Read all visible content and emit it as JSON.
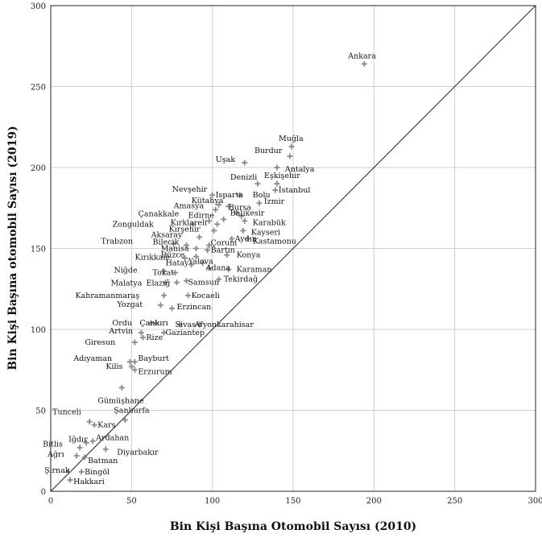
{
  "chart_data": {
    "type": "scatter",
    "title": "",
    "xlabel": "Bin Kişi Başına Otomobil Sayısı (2010)",
    "ylabel": "Bin Kişi Başına otomobil Sayısı (2019)",
    "xlim": [
      0,
      300
    ],
    "ylim": [
      0,
      300
    ],
    "xticks": [
      0,
      50,
      100,
      150,
      200,
      250,
      300
    ],
    "yticks": [
      0,
      50,
      100,
      150,
      200,
      250,
      300
    ],
    "grid": true,
    "reference_line": "y = x",
    "marker": "plus",
    "marker_color": "#8a8a8a",
    "points": [
      {
        "label": "Ankara",
        "x": 194,
        "y": 264,
        "ldx": -20,
        "ldy": -10
      },
      {
        "label": "Muğla",
        "x": 149,
        "y": 213,
        "ldx": -16,
        "ldy": -10
      },
      {
        "label": "Burdur",
        "x": 148,
        "y": 207,
        "ldx": -44,
        "ldy": -7
      },
      {
        "label": "Antalya",
        "x": 140,
        "y": 200,
        "ldx": 10,
        "ldy": 2
      },
      {
        "label": "Uşak",
        "x": 120,
        "y": 203,
        "ldx": -36,
        "ldy": -4
      },
      {
        "label": "Denizli",
        "x": 128,
        "y": 190,
        "ldx": -34,
        "ldy": -8
      },
      {
        "label": "Eşkişehir",
        "x": 140,
        "y": 190,
        "ldx": -16,
        "ldy": -10
      },
      {
        "label": "İstanbul",
        "x": 139,
        "y": 186,
        "ldx": 4,
        "ldy": 0
      },
      {
        "label": "Bolu",
        "x": 117,
        "y": 183,
        "ldx": 16,
        "ldy": 0
      },
      {
        "label": "Nevşehir",
        "x": 100,
        "y": 183,
        "ldx": -50,
        "ldy": -7
      },
      {
        "label": "Isparta",
        "x": 104,
        "y": 177,
        "ldx": -4,
        "ldy": -12
      },
      {
        "label": "Kütahya",
        "x": 110,
        "y": 176,
        "ldx": -46,
        "ldy": -7
      },
      {
        "label": "Amasya",
        "x": 102,
        "y": 174,
        "ldx": -52,
        "ldy": -5
      },
      {
        "label": "İzmir",
        "x": 129,
        "y": 178,
        "ldx": 6,
        "ldy": -2
      },
      {
        "label": "Bursa",
        "x": 115,
        "y": 172,
        "ldx": -10,
        "ldy": -7
      },
      {
        "label": "Balıkesir",
        "x": 118,
        "y": 170,
        "ldx": -14,
        "ldy": -4
      },
      {
        "label": "Çanakkale",
        "x": 98,
        "y": 167,
        "ldx": -88,
        "ldy": -9
      },
      {
        "label": "Edirne",
        "x": 107,
        "y": 168,
        "ldx": -44,
        "ldy": -5
      },
      {
        "label": "Karabük",
        "x": 120,
        "y": 167,
        "ldx": 10,
        "ldy": 2
      },
      {
        "label": "Zonguldak",
        "x": 88,
        "y": 165,
        "ldx": -100,
        "ldy": 0
      },
      {
        "label": "Kırklareli",
        "x": 103,
        "y": 165,
        "ldx": -58,
        "ldy": -2
      },
      {
        "label": "Kırşehir",
        "x": 101,
        "y": 161,
        "ldx": -56,
        "ldy": -2
      },
      {
        "label": "Kayseri",
        "x": 119,
        "y": 161,
        "ldx": 10,
        "ldy": 2
      },
      {
        "label": "Aksaray",
        "x": 92,
        "y": 157,
        "ldx": -60,
        "ldy": -3
      },
      {
        "label": "Aydın",
        "x": 112,
        "y": 156,
        "ldx": 4,
        "ldy": 0
      },
      {
        "label": "Kastamonu",
        "x": 122,
        "y": 156,
        "ldx": 6,
        "ldy": 3
      },
      {
        "label": "Bilecik",
        "x": 84,
        "y": 152,
        "ldx": -42,
        "ldy": -4
      },
      {
        "label": "Çorum",
        "x": 98,
        "y": 152,
        "ldx": 2,
        "ldy": -3
      },
      {
        "label": "Bartın",
        "x": 97,
        "y": 149,
        "ldx": 4,
        "ldy": 0
      },
      {
        "label": "Trabzon",
        "x": 76,
        "y": 153,
        "ldx": -90,
        "ldy": -3
      },
      {
        "label": "Manisa",
        "x": 90,
        "y": 150,
        "ldx": -44,
        "ldy": 0
      },
      {
        "label": "Konya",
        "x": 109,
        "y": 146,
        "ldx": 12,
        "ldy": 0
      },
      {
        "label": "Kırıkkale",
        "x": 83,
        "y": 144,
        "ldx": -62,
        "ldy": -1
      },
      {
        "label": "Düzce",
        "x": 90,
        "y": 145,
        "ldx": -44,
        "ldy": -2
      },
      {
        "label": "Hatay",
        "x": 87,
        "y": 140,
        "ldx": -32,
        "ldy": -2
      },
      {
        "label": "Yalova",
        "x": 94,
        "y": 141,
        "ldx": -18,
        "ldy": -2
      },
      {
        "label": "Adana",
        "x": 98,
        "y": 138,
        "ldx": -4,
        "ldy": 0
      },
      {
        "label": "Karaman",
        "x": 110,
        "y": 137,
        "ldx": 10,
        "ldy": 0
      },
      {
        "label": "Niğde",
        "x": 70,
        "y": 136,
        "ldx": -62,
        "ldy": -1
      },
      {
        "label": "Tokat",
        "x": 77,
        "y": 135,
        "ldx": -28,
        "ldy": 0
      },
      {
        "label": "Samsun",
        "x": 84,
        "y": 130,
        "ldx": 2,
        "ldy": 2
      },
      {
        "label": "Tekirdağ",
        "x": 104,
        "y": 131,
        "ldx": 6,
        "ldy": 0
      },
      {
        "label": "Malatya",
        "x": 71,
        "y": 129,
        "ldx": -68,
        "ldy": 1
      },
      {
        "label": "Elazığ",
        "x": 78,
        "y": 129,
        "ldx": -38,
        "ldy": 1
      },
      {
        "label": "Kahramanmaraş",
        "x": 70,
        "y": 121,
        "ldx": -110,
        "ldy": 0
      },
      {
        "label": "Kocaeli",
        "x": 85,
        "y": 121,
        "ldx": 4,
        "ldy": 0
      },
      {
        "label": "Yozgat",
        "x": 68,
        "y": 115,
        "ldx": -54,
        "ldy": -1
      },
      {
        "label": "Erzincan",
        "x": 75,
        "y": 113,
        "ldx": 6,
        "ldy": -2
      },
      {
        "label": "Ordu",
        "x": 62,
        "y": 104,
        "ldx": -48,
        "ldy": 0
      },
      {
        "label": "Çankırı",
        "x": 65,
        "y": 104,
        "ldx": -20,
        "ldy": 0
      },
      {
        "label": "Sivas",
        "x": 80,
        "y": 103,
        "ldx": -6,
        "ldy": 0
      },
      {
        "label": "Afyonkarahisar",
        "x": 92,
        "y": 103,
        "ldx": -6,
        "ldy": 0
      },
      {
        "label": "Artvin",
        "x": 56,
        "y": 98,
        "ldx": -40,
        "ldy": -2
      },
      {
        "label": "Rize",
        "x": 57,
        "y": 95,
        "ldx": 4,
        "ldy": 0
      },
      {
        "label": "Gaziantep",
        "x": 70,
        "y": 98,
        "ldx": 2,
        "ldy": 0
      },
      {
        "label": "Giresun",
        "x": 52,
        "y": 92,
        "ldx": -62,
        "ldy": 0
      },
      {
        "label": "Adıyaman",
        "x": 49,
        "y": 80,
        "ldx": -70,
        "ldy": -4
      },
      {
        "label": "Bayburt",
        "x": 52,
        "y": 80,
        "ldx": 4,
        "ldy": -4
      },
      {
        "label": "Kilis",
        "x": 50,
        "y": 77,
        "ldx": -32,
        "ldy": 0
      },
      {
        "label": "Erzurum",
        "x": 52,
        "y": 75,
        "ldx": 4,
        "ldy": 2
      },
      {
        "label": "Gümüşhane",
        "x": 44,
        "y": 64,
        "ldx": -30,
        "ldy": 16
      },
      {
        "label": "Şanlıurfa",
        "x": 46,
        "y": 44,
        "ldx": -14,
        "ldy": -12
      },
      {
        "label": "Tunceli",
        "x": 24,
        "y": 43,
        "ldx": -46,
        "ldy": -12
      },
      {
        "label": "Kars",
        "x": 27,
        "y": 41,
        "ldx": 4,
        "ldy": 0
      },
      {
        "label": "Ardahan",
        "x": 26,
        "y": 31,
        "ldx": 4,
        "ldy": -4
      },
      {
        "label": "Iğdır",
        "x": 22,
        "y": 30,
        "ldx": -22,
        "ldy": -4
      },
      {
        "label": "Bitlis",
        "x": 18,
        "y": 27,
        "ldx": -46,
        "ldy": -4
      },
      {
        "label": "Diyarbakır",
        "x": 34,
        "y": 26,
        "ldx": 14,
        "ldy": 4
      },
      {
        "label": "Ağrı",
        "x": 16,
        "y": 22,
        "ldx": -36,
        "ldy": -2
      },
      {
        "label": "Batman",
        "x": 21,
        "y": 21,
        "ldx": 4,
        "ldy": 4
      },
      {
        "label": "Şırnak",
        "x": 11,
        "y": 12,
        "ldx": -30,
        "ldy": -2
      },
      {
        "label": "Bingöl",
        "x": 19,
        "y": 12,
        "ldx": 4,
        "ldy": 0
      },
      {
        "label": "Hakkari",
        "x": 12,
        "y": 7,
        "ldx": 4,
        "ldy": 2
      }
    ]
  }
}
